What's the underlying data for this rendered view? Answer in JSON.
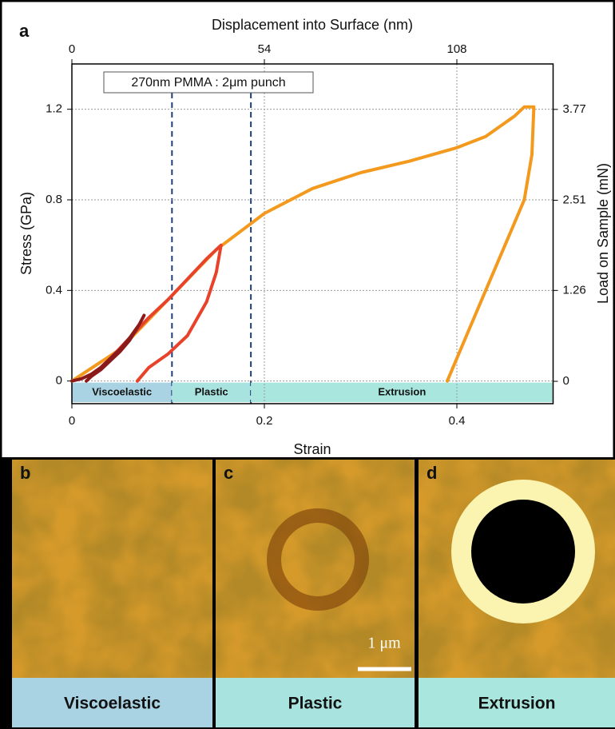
{
  "chart_data": {
    "type": "line",
    "panel_label": "a",
    "title": "Displacement into Surface (nm)",
    "xlabel": "Strain",
    "ylabel": "Stress (GPa)",
    "y2label": "Load on Sample (mN)",
    "annotation": "270nm PMMA : 2μm punch",
    "xlim": [
      0,
      0.5
    ],
    "xticks": [
      0,
      0.2,
      0.4
    ],
    "ylim": [
      -0.1,
      1.4
    ],
    "yticks": [
      0,
      0.4,
      0.8,
      1.2
    ],
    "x2lim": [
      0,
      135
    ],
    "x2ticks": [
      0,
      54,
      108
    ],
    "y2lim": [
      -0.31,
      4.4
    ],
    "y2ticks": [
      0,
      1.26,
      2.51,
      3.77
    ],
    "grid": true,
    "regions": [
      {
        "name": "Viscoelastic",
        "xlim": [
          0,
          0.104
        ],
        "color": "#a9d3e3"
      },
      {
        "name": "Plastic",
        "xlim": [
          0.104,
          0.186
        ],
        "color": "#a8e3df"
      },
      {
        "name": "Extrusion",
        "xlim": [
          0.186,
          0.5
        ],
        "color": "#a8e6de"
      }
    ],
    "series": [
      {
        "color": "#f39a1e",
        "x": [
          0,
          0.05,
          0.1,
          0.15,
          0.2,
          0.25,
          0.3,
          0.35,
          0.4,
          0.43,
          0.46,
          0.47,
          0.48,
          0.478,
          0.47,
          0.45,
          0.43,
          0.41,
          0.4,
          0.39
        ],
        "values": [
          0,
          0.14,
          0.36,
          0.58,
          0.74,
          0.85,
          0.92,
          0.97,
          1.03,
          1.08,
          1.17,
          1.21,
          1.21,
          1.0,
          0.8,
          0.6,
          0.4,
          0.2,
          0.1,
          0
        ]
      },
      {
        "color": "#e8432a",
        "x": [
          0.04,
          0.06,
          0.08,
          0.1,
          0.12,
          0.14,
          0.155,
          0.15,
          0.14,
          0.12,
          0.1,
          0.09,
          0.08,
          0.068
        ],
        "values": [
          0.1,
          0.19,
          0.28,
          0.36,
          0.45,
          0.54,
          0.6,
          0.48,
          0.35,
          0.2,
          0.12,
          0.09,
          0.06,
          0
        ]
      },
      {
        "color": "#8b1a1a",
        "x": [
          0,
          0.01,
          0.02,
          0.03,
          0.04,
          0.05,
          0.06,
          0.07,
          0.075,
          0.07,
          0.06,
          0.05,
          0.04,
          0.03,
          0.02,
          0.015
        ],
        "values": [
          0,
          0.01,
          0.03,
          0.06,
          0.1,
          0.14,
          0.19,
          0.25,
          0.29,
          0.25,
          0.18,
          0.13,
          0.09,
          0.05,
          0.02,
          0
        ]
      }
    ]
  },
  "panels": [
    {
      "label": "b",
      "caption": "Viscoelastic"
    },
    {
      "label": "c",
      "caption": "Plastic",
      "scale_bar": "1 μm"
    },
    {
      "label": "d",
      "caption": "Extrusion"
    }
  ]
}
